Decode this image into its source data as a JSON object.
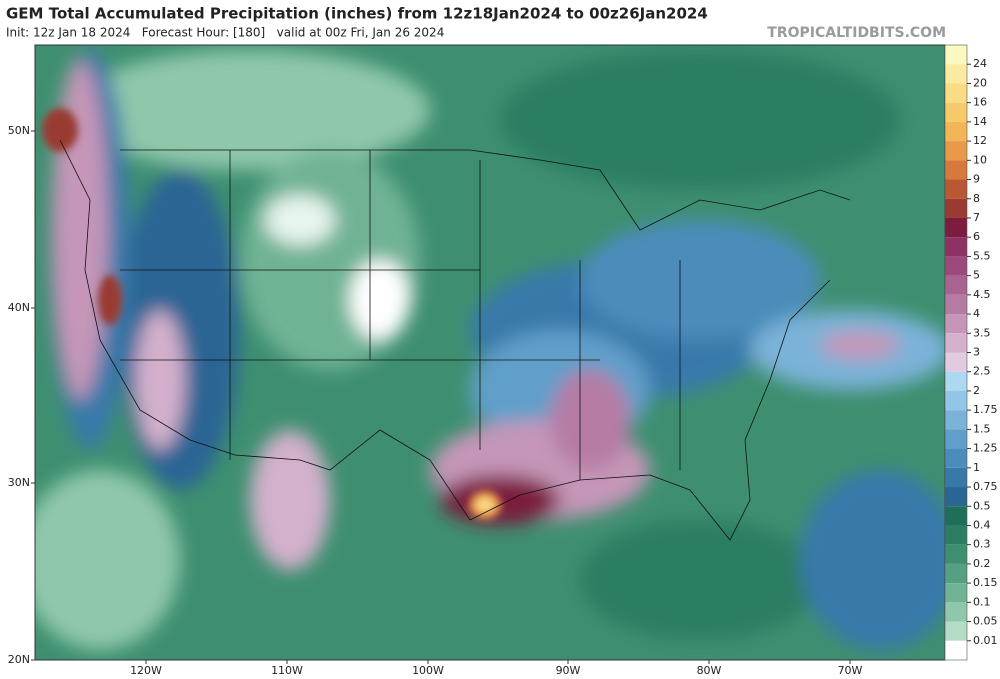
{
  "header": {
    "title": "GEM Total Accumulated Precipitation (inches) from 12z18Jan2024 to 00z26Jan2024",
    "subtitle": "Init: 12z Jan 18 2024   Forecast Hour: [180]   valid at 00z Fri, Jan 26 2024",
    "brand": "TROPICALTIDBITS.COM"
  },
  "map": {
    "lat_labels": [
      "50N",
      "40N",
      "30N",
      "20N"
    ],
    "lon_labels": [
      "120W",
      "110W",
      "100W",
      "90W",
      "80W",
      "70W"
    ]
  },
  "colorbar": {
    "labels": [
      "24",
      "20",
      "16",
      "14",
      "12",
      "10",
      "9",
      "8",
      "7",
      "6",
      "5.5",
      "5",
      "4.5",
      "4",
      "3.5",
      "3",
      "2.5",
      "2",
      "1.75",
      "1.5",
      "1.25",
      "1",
      "0.75",
      "0.5",
      "0.4",
      "0.3",
      "0.2",
      "0.15",
      "0.1",
      "0.05",
      "0.01"
    ],
    "colors": [
      "#fdf7c0",
      "#fbeaa0",
      "#f9dc84",
      "#f6ca6a",
      "#f2b656",
      "#e89a48",
      "#d6793c",
      "#b95834",
      "#9a3a30",
      "#7c1c3e",
      "#8e3264",
      "#9c4a7c",
      "#a86390",
      "#b67ba4",
      "#c596b8",
      "#d3b0cc",
      "#e2cae0",
      "#acd8f0",
      "#93c6e6",
      "#7ab2d8",
      "#619fca",
      "#4b8cbb",
      "#3879aa",
      "#2a6594",
      "#1f6e58",
      "#2c7e62",
      "#3e8f70",
      "#55a080",
      "#70b394",
      "#8fc7aa",
      "#b4dcc6",
      "#ffffff"
    ]
  }
}
